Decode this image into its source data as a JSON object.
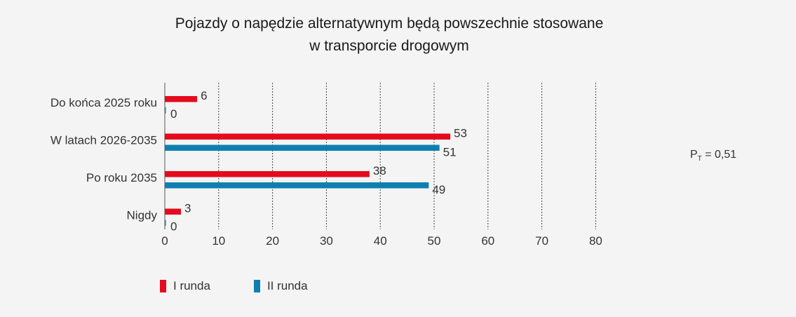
{
  "chart_data": {
    "type": "bar",
    "orientation": "horizontal",
    "title_lines": [
      "Pojazdy o napędzie alternatywnym będą powszechnie stosowane",
      "w transporcie drogowym"
    ],
    "categories": [
      "Do końca 2025 roku",
      "W latach 2026-2035",
      "Po roku 2035",
      "Nigdy"
    ],
    "series": [
      {
        "name": "I runda",
        "color": "#e30b1c",
        "values": [
          6,
          53,
          38,
          3
        ]
      },
      {
        "name": "II runda",
        "color": "#0f7fb1",
        "values": [
          0,
          51,
          49,
          0
        ]
      }
    ],
    "xlim": [
      0,
      80
    ],
    "xticks": [
      0,
      10,
      20,
      30,
      40,
      50,
      60,
      70,
      80
    ],
    "grid": true,
    "legend_position": "bottom-left"
  },
  "annotation": {
    "prefix": "P",
    "subscript": "T",
    "suffix": " = 0,51"
  }
}
